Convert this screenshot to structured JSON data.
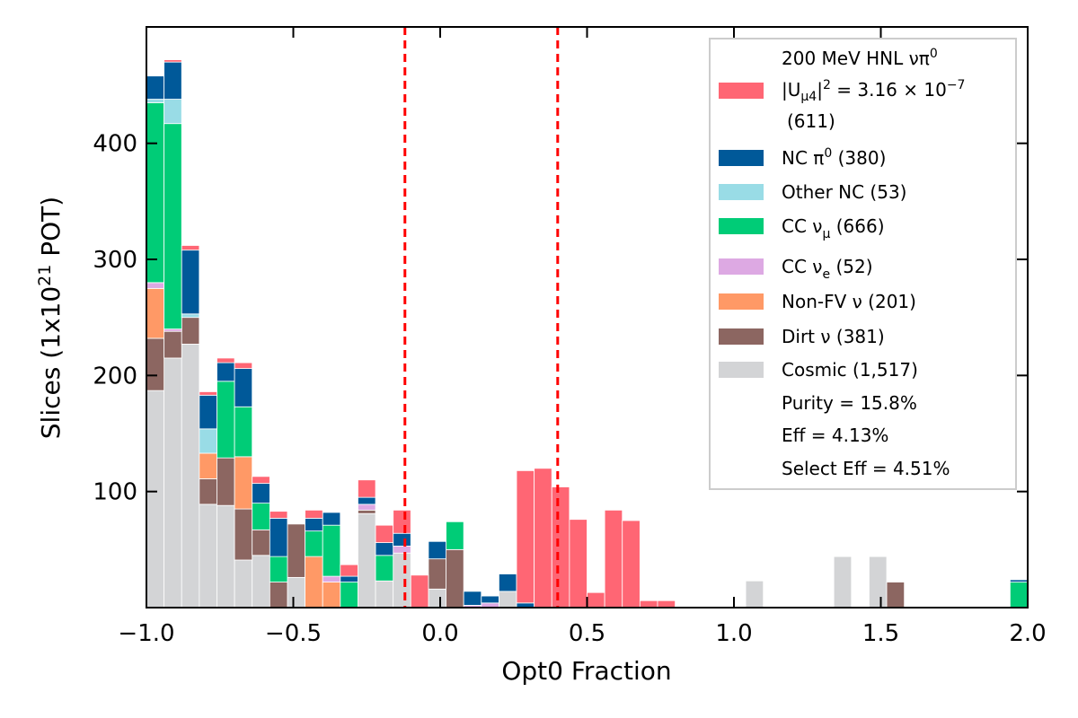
{
  "chart_data": {
    "type": "bar",
    "stacked": true,
    "xlabel": "Opt0 Fraction",
    "ylabel": "Slices (1x10^21 POT)",
    "xlim": [
      -1.0,
      2.0
    ],
    "ylim": [
      0,
      500
    ],
    "bin_width": 0.06,
    "bin_start": -1.0,
    "xticks": [
      -1.0,
      -0.5,
      0.0,
      0.5,
      1.0,
      1.5,
      2.0
    ],
    "xtick_labels": [
      "−1.0",
      "−0.5",
      "0.0",
      "0.5",
      "1.0",
      "1.5",
      "2.0"
    ],
    "yticks": [
      100,
      200,
      300,
      400
    ],
    "ytick_labels": [
      "100",
      "200",
      "300",
      "400"
    ],
    "cut_lines": [
      -0.12,
      0.4
    ],
    "cut_line_color": "#ff0000",
    "grid": false,
    "legend_position": "top-right",
    "series": [
      {
        "name": "Cosmic (1,517)",
        "color": "#d3d4d6",
        "values": [
          187,
          215,
          227,
          89,
          88,
          41,
          45,
          0,
          26,
          0,
          0,
          0,
          81,
          23,
          47,
          0,
          16,
          0,
          0,
          0,
          14,
          0,
          0,
          0,
          0,
          0,
          0,
          0,
          0,
          0,
          0,
          0,
          0,
          0,
          23,
          0,
          0,
          0,
          0,
          44,
          0,
          44,
          0,
          0,
          0,
          0,
          0,
          0,
          0,
          0
        ]
      },
      {
        "name": "Dirt ν (381)",
        "color": "#8c6661",
        "values": [
          45,
          23,
          23,
          22,
          41,
          44,
          22,
          22,
          46,
          0,
          0,
          0,
          3,
          0,
          0,
          0,
          26,
          50,
          0,
          0,
          0,
          0,
          0,
          0,
          0,
          0,
          0,
          0,
          0,
          0,
          0,
          0,
          0,
          0,
          0,
          0,
          0,
          0,
          0,
          0,
          0,
          0,
          22,
          0,
          0,
          0,
          0,
          0,
          0,
          0
        ]
      },
      {
        "name": "Non-FV ν (201)",
        "color": "#ff9966",
        "values": [
          43,
          0,
          0,
          22,
          0,
          45,
          0,
          0,
          0,
          44,
          22,
          0,
          0,
          0,
          0,
          0,
          0,
          0,
          0,
          0,
          0,
          0,
          0,
          0,
          0,
          0,
          0,
          0,
          0,
          0,
          0,
          0,
          0,
          0,
          0,
          0,
          0,
          0,
          0,
          0,
          0,
          0,
          0,
          0,
          0,
          0,
          0,
          0,
          0,
          0
        ]
      },
      {
        "name": "CC νe (52)",
        "color": "#dda9e3",
        "values": [
          5,
          2,
          0,
          0,
          0,
          0,
          0,
          0,
          0,
          0,
          5,
          0,
          5,
          0,
          6,
          0,
          0,
          0,
          2,
          4,
          0,
          0,
          0,
          0,
          0,
          0,
          0,
          0,
          0,
          0,
          0,
          0,
          0,
          0,
          0,
          0,
          0,
          0,
          0,
          0,
          0,
          0,
          0,
          0,
          0,
          0,
          0,
          0,
          0,
          0
        ]
      },
      {
        "name": "CC νμ (666)",
        "color": "#00cc77",
        "values": [
          155,
          177,
          0,
          0,
          66,
          43,
          23,
          22,
          0,
          22,
          44,
          22,
          0,
          22,
          0,
          0,
          0,
          24,
          0,
          0,
          0,
          0,
          0,
          0,
          0,
          0,
          0,
          0,
          0,
          0,
          0,
          0,
          0,
          0,
          0,
          0,
          0,
          0,
          0,
          0,
          0,
          0,
          0,
          0,
          0,
          0,
          0,
          0,
          0,
          22
        ]
      },
      {
        "name": "Other NC (53)",
        "color": "#99dce6",
        "values": [
          3,
          21,
          3,
          21,
          0,
          0,
          0,
          0,
          0,
          0,
          0,
          0,
          0,
          0,
          0,
          0,
          0,
          0,
          0,
          0,
          0,
          0,
          0,
          0,
          0,
          0,
          0,
          0,
          0,
          0,
          0,
          0,
          0,
          0,
          0,
          0,
          0,
          0,
          0,
          0,
          0,
          0,
          0,
          0,
          0,
          0,
          0,
          0,
          0,
          0
        ]
      },
      {
        "name": "NC π0 (380)",
        "color": "#005999",
        "values": [
          20,
          32,
          55,
          29,
          16,
          33,
          17,
          33,
          0,
          11,
          11,
          5,
          6,
          11,
          11,
          0,
          15,
          0,
          12,
          6,
          15,
          4,
          0,
          0,
          0,
          0,
          0,
          0,
          0,
          0,
          0,
          0,
          0,
          0,
          0,
          0,
          0,
          0,
          0,
          0,
          0,
          0,
          0,
          0,
          0,
          0,
          0,
          0,
          0,
          2
        ]
      },
      {
        "name": "200 MeV HNL νπ0 |Uμ4|2 = 3.16×10−7 (611)",
        "color": "#ff6674",
        "values": [
          0,
          2,
          4,
          3,
          4,
          5,
          6,
          6,
          0,
          7,
          0,
          10,
          15,
          15,
          20,
          28,
          0,
          0,
          0,
          0,
          0,
          114,
          120,
          104,
          76,
          13,
          84,
          75,
          6,
          6,
          1,
          0,
          0,
          0,
          0,
          0,
          0,
          0,
          0,
          0,
          0,
          0,
          0,
          0,
          0,
          0,
          0,
          0,
          0,
          0
        ]
      }
    ]
  },
  "legend": {
    "hnl_line1": "200 MeV HNL νπ",
    "hnl_line1_sup": "0",
    "hnl_line2_a": "|U",
    "hnl_line2_sub": "μ4",
    "hnl_line2_b": "|",
    "hnl_line2_sup": "2",
    "hnl_line2_c": " = 3.16 × 10",
    "hnl_line2_exp": "−7",
    "hnl_line3": "(611)",
    "ncpi0_a": "NC π",
    "ncpi0_sup": "0",
    "ncpi0_b": " (380)",
    "othernc": "Other NC (53)",
    "ccnumu_a": "CC ν",
    "ccnumu_sub": "μ",
    "ccnumu_b": " (666)",
    "ccnue_a": "CC ν",
    "ccnue_sub": "e",
    "ccnue_b": " (52)",
    "nonfv": "Non-FV ν (201)",
    "dirt": "Dirt ν (381)",
    "cosmic": "Cosmic (1,517)",
    "purity": "Purity = 15.8%",
    "eff": "Eff = 4.13%",
    "select_eff": "Select Eff = 4.51%"
  },
  "ylabel_parts": {
    "a": "Slices (1x10",
    "sup": "21",
    "b": " POT)"
  }
}
